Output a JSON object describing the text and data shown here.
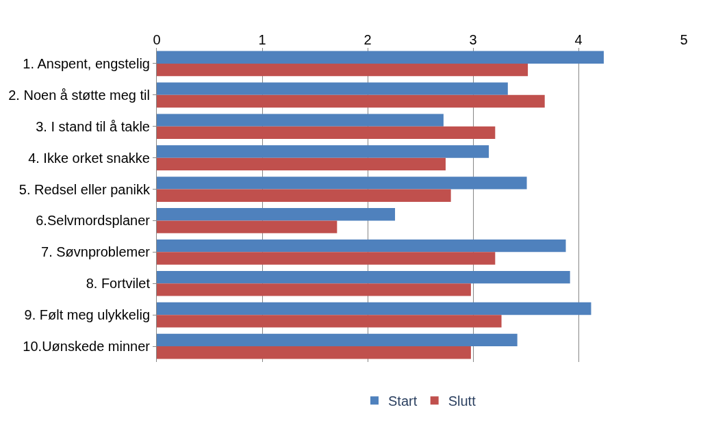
{
  "chart_data": {
    "type": "bar",
    "orientation": "horizontal",
    "categories": [
      "1. Anspent, engstelig",
      "2. Noen å støtte meg til",
      "3. I stand til å takle",
      "4. Ikke orket snakke",
      "5. Redsel eller panikk",
      "6.Selvmordsplaner",
      "7. Søvnproblemer",
      "8. Fortvilet",
      "9. Følt meg ulykkelig",
      "10.Uønskede minner"
    ],
    "series": [
      {
        "name": "Start",
        "color": "#4f81bd",
        "values": [
          4.24,
          3.33,
          2.72,
          3.15,
          3.51,
          2.26,
          3.88,
          3.92,
          4.12,
          3.42
        ]
      },
      {
        "name": "Slutt",
        "color": "#c0504d",
        "values": [
          3.52,
          3.68,
          3.21,
          2.74,
          2.79,
          1.71,
          3.21,
          2.98,
          3.27,
          2.98
        ]
      }
    ],
    "xlim": [
      0,
      5
    ],
    "xticks": [
      0,
      1,
      2,
      3,
      4,
      5
    ],
    "grid": "x",
    "legend": "bottom"
  }
}
